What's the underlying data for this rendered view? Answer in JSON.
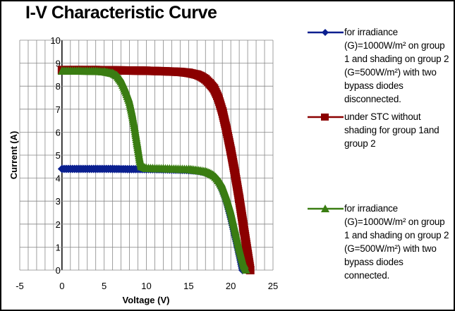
{
  "chart_data": {
    "type": "scatter",
    "title": "I-V Characteristic Curve",
    "xlabel": "Voltage (V)",
    "ylabel": "Current (A)",
    "xlim": [
      -5,
      25
    ],
    "ylim": [
      0,
      10
    ],
    "x_ticks": [
      "-5",
      "0",
      "5",
      "10",
      "15",
      "20",
      "25"
    ],
    "y_ticks": [
      "0",
      "1",
      "2",
      "3",
      "4",
      "5",
      "6",
      "7",
      "8",
      "9",
      "10"
    ],
    "grid": true,
    "minor_grid_x_step": 1,
    "legend_position": "right",
    "series": [
      {
        "name": "for  irradiance (G)=1000W/m² on group 1 and shading on group 2 (G=500W/m²) with two bypass diodes disconnected.",
        "color": "#0a1f8f",
        "marker": "diamond",
        "points": [
          [
            0,
            4.4
          ],
          [
            2,
            4.4
          ],
          [
            4,
            4.4
          ],
          [
            6,
            4.4
          ],
          [
            8,
            4.39
          ],
          [
            10,
            4.39
          ],
          [
            12,
            4.38
          ],
          [
            14,
            4.36
          ],
          [
            15,
            4.35
          ],
          [
            16,
            4.32
          ],
          [
            17,
            4.25
          ],
          [
            17.5,
            4.17
          ],
          [
            18,
            4.05
          ],
          [
            18.5,
            3.85
          ],
          [
            19,
            3.5
          ],
          [
            19.5,
            3.0
          ],
          [
            20,
            2.3
          ],
          [
            20.5,
            1.5
          ],
          [
            21,
            0.7
          ],
          [
            21.4,
            0
          ]
        ]
      },
      {
        "name": "under STC without shading for group 1and group 2",
        "color": "#8b0000",
        "marker": "square",
        "points": [
          [
            0,
            8.7
          ],
          [
            2,
            8.7
          ],
          [
            4,
            8.7
          ],
          [
            6,
            8.69
          ],
          [
            8,
            8.68
          ],
          [
            10,
            8.67
          ],
          [
            12,
            8.65
          ],
          [
            14,
            8.62
          ],
          [
            15,
            8.58
          ],
          [
            16,
            8.5
          ],
          [
            16.5,
            8.42
          ],
          [
            17,
            8.3
          ],
          [
            17.5,
            8.12
          ],
          [
            18,
            7.9
          ],
          [
            18.5,
            7.5
          ],
          [
            19,
            6.9
          ],
          [
            19.5,
            6.1
          ],
          [
            20,
            5.2
          ],
          [
            20.5,
            4.2
          ],
          [
            21,
            3.1
          ],
          [
            21.5,
            1.9
          ],
          [
            22,
            0.7
          ],
          [
            22.3,
            0
          ]
        ]
      },
      {
        "name": "for  irradiance (G)=1000W/m² on group 1 and shading on group 2 (G=500W/m²) with two bypass diodes connected.",
        "color": "#3a7d12",
        "marker": "triangle",
        "points": [
          [
            0,
            8.65
          ],
          [
            2,
            8.65
          ],
          [
            4,
            8.64
          ],
          [
            5,
            8.62
          ],
          [
            6,
            8.55
          ],
          [
            6.5,
            8.45
          ],
          [
            7,
            8.2
          ],
          [
            7.5,
            7.8
          ],
          [
            8,
            7.3
          ],
          [
            8.3,
            6.8
          ],
          [
            8.6,
            6.2
          ],
          [
            8.9,
            5.5
          ],
          [
            9.2,
            4.8
          ],
          [
            9.4,
            4.5
          ],
          [
            10,
            4.42
          ],
          [
            12,
            4.4
          ],
          [
            14,
            4.38
          ],
          [
            15,
            4.37
          ],
          [
            16,
            4.33
          ],
          [
            17,
            4.27
          ],
          [
            17.5,
            4.2
          ],
          [
            18,
            4.1
          ],
          [
            18.5,
            3.9
          ],
          [
            19,
            3.6
          ],
          [
            19.5,
            3.1
          ],
          [
            20,
            2.5
          ],
          [
            20.5,
            1.7
          ],
          [
            21,
            0.9
          ],
          [
            21.5,
            0.2
          ],
          [
            21.8,
            0
          ]
        ]
      }
    ]
  },
  "legend": {
    "entries": [
      {
        "line1": "for  irradiance",
        "line2": "(G)=1000W/m² on group",
        "line3": "1 and shading on group 2",
        "line4": "(G=500W/m²) with two",
        "line5": "bypass diodes",
        "line6": "disconnected."
      },
      {
        "line1": "under STC without",
        "line2": "shading for group 1and",
        "line3": "group 2"
      },
      {
        "line1": "for  irradiance",
        "line2": "(G)=1000W/m² on group",
        "line3": "1 and shading on group 2",
        "line4": "(G=500W/m²) with two",
        "line5": "bypass diodes",
        "line6": "connected."
      }
    ]
  }
}
